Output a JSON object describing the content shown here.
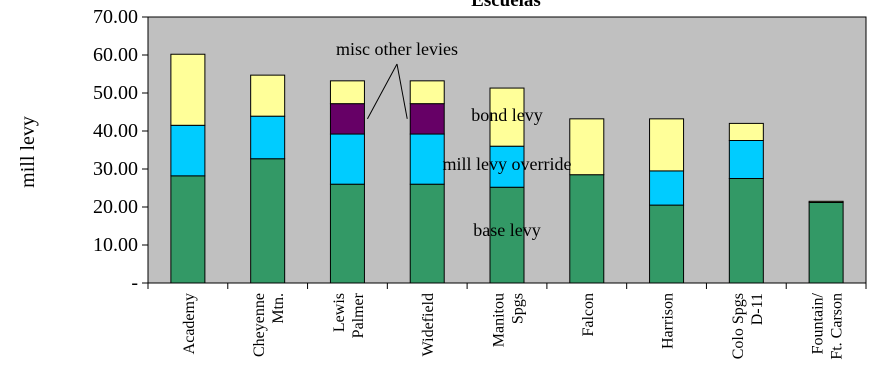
{
  "chart_data": {
    "type": "bar",
    "stacked": true,
    "title": "Escuelas",
    "xlabel": "",
    "ylabel": "mill levy",
    "ylim": [
      0,
      70
    ],
    "y_ticks": [
      {
        "value": 0,
        "label": "-"
      },
      {
        "value": 10,
        "label": "10.00"
      },
      {
        "value": 20,
        "label": "20.00"
      },
      {
        "value": 30,
        "label": "30.00"
      },
      {
        "value": 40,
        "label": "40.00"
      },
      {
        "value": 50,
        "label": "50.00"
      },
      {
        "value": 60,
        "label": "60.00"
      },
      {
        "value": 70,
        "label": "70.00"
      }
    ],
    "grid": false,
    "plot_background": "#c0c0c0",
    "categories": [
      [
        "Academy"
      ],
      [
        "Cheyenne",
        "Mtn."
      ],
      [
        "Lewis",
        "Palmer"
      ],
      [
        "Widefield"
      ],
      [
        "Manitou",
        "Spgs"
      ],
      [
        "Falcon"
      ],
      [
        "Harrison"
      ],
      [
        "Colo Spgs",
        "D-11"
      ],
      [
        "Fountain/",
        "Ft. Carson"
      ]
    ],
    "series": [
      {
        "key": "base",
        "color": "#339966",
        "values": [
          28.2,
          32.7,
          26.0,
          26.0,
          25.2,
          28.5,
          20.5,
          27.5,
          21.2
        ]
      },
      {
        "key": "override",
        "color": "#00ccff",
        "values": [
          13.3,
          11.2,
          13.2,
          13.2,
          10.8,
          0,
          9.0,
          10.0,
          0
        ]
      },
      {
        "key": "misc",
        "color": "#660066",
        "values": [
          0,
          0,
          8.0,
          8.0,
          0,
          0,
          0,
          0,
          0
        ]
      },
      {
        "key": "bond",
        "color": "#ffff99",
        "values": [
          18.7,
          10.8,
          6.0,
          6.0,
          15.3,
          14.7,
          13.7,
          4.5,
          0.3
        ]
      }
    ],
    "annotations": [
      {
        "key": "misc",
        "text": "misc other levies"
      },
      {
        "key": "bond",
        "text": "bond levy"
      },
      {
        "key": "override",
        "text": "mill levy override"
      },
      {
        "key": "base",
        "text": "base levy"
      }
    ]
  }
}
